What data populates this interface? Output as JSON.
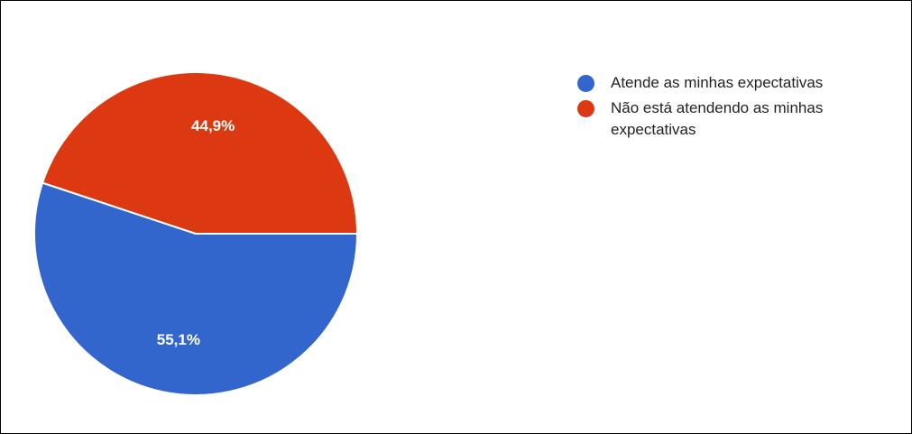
{
  "chart_data": {
    "type": "pie",
    "slices": [
      {
        "label": "Atende as minhas expectativas",
        "value": 55.1,
        "display": "55,1%",
        "color": "#3366cc"
      },
      {
        "label": "Não está atendendo as minhas expectativas",
        "value": 44.9,
        "display": "44,9%",
        "color": "#dc3912"
      }
    ],
    "legend_position": "right"
  }
}
